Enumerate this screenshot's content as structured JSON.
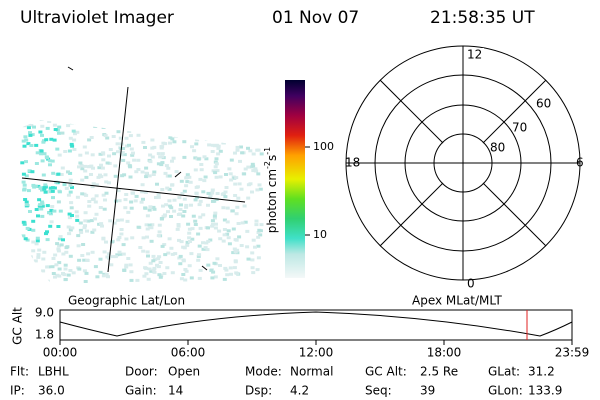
{
  "header": {
    "instrument": "Ultraviolet Imager",
    "date": "01 Nov 07",
    "time": "21:58:35 UT"
  },
  "colorbar": {
    "label": {
      "unit": "photon cm",
      "exp1": "-2",
      "unit2": "s",
      "exp2": "-1"
    },
    "ticks": [
      "100",
      "10"
    ]
  },
  "polar_plot": {
    "mlt_labels": [
      "12",
      "18",
      "6",
      "0"
    ],
    "lat_labels": [
      "60",
      "70",
      "80"
    ]
  },
  "timeline": {
    "left_title": "Geographic Lat/Lon",
    "right_title": "Apex MLat/MLT",
    "y_label": "GC Alt",
    "y_ticks": [
      "9.0",
      "1.8"
    ],
    "x_ticks": [
      "00:00",
      "06:00",
      "12:00",
      "18:00",
      "23:59"
    ]
  },
  "status": [
    [
      {
        "label": "Flt:",
        "value": "LBHL"
      },
      {
        "label": "Door:",
        "value": "Open"
      },
      {
        "label": "Mode:",
        "value": "Normal"
      },
      {
        "label": "GC Alt:",
        "value": "2.5 Re"
      },
      {
        "label": "GLat:",
        "value": "31.2"
      }
    ],
    [
      {
        "label": "IP:",
        "value": "36.0"
      },
      {
        "label": "Gain:",
        "value": "14"
      },
      {
        "label": "Dsp:",
        "value": "4.2"
      },
      {
        "label": "Seq:",
        "value": "39"
      },
      {
        "label": "GLon:",
        "value": "133.9"
      }
    ]
  ]
}
